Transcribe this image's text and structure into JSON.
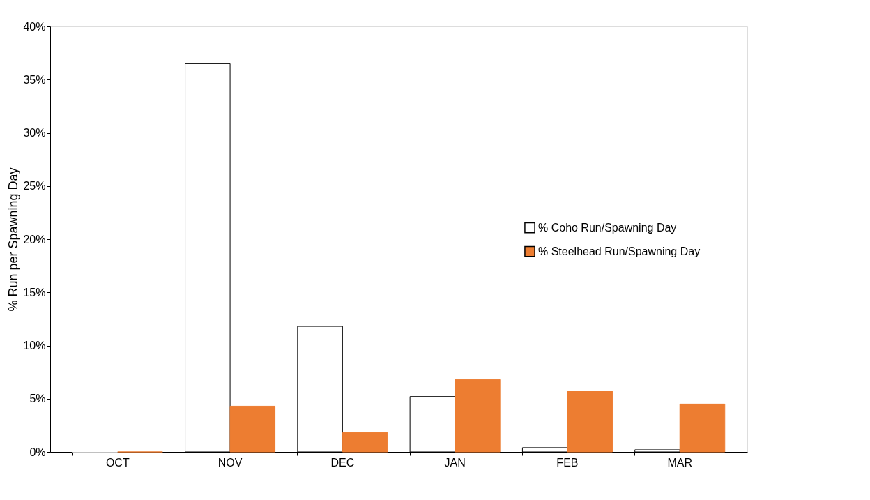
{
  "chart_data": {
    "type": "bar",
    "ylabel": "% Run per Spawning Day",
    "categories": [
      "OCT",
      "NOV",
      "DEC",
      "JAN",
      "FEB",
      "MAR"
    ],
    "series": [
      {
        "name": "% Coho Run/Spawning Day",
        "color": "#ffffff",
        "values": [
          0,
          36.5,
          11.8,
          5.2,
          0.4,
          0.2
        ]
      },
      {
        "name": "% Steelhead Run/Spawning Day",
        "color": "#ed7d31",
        "values": [
          0,
          4.3,
          1.8,
          6.8,
          5.7,
          4.5
        ]
      }
    ],
    "ylim": [
      0,
      40
    ],
    "yticks": [
      {
        "value": 0,
        "label": "0%"
      },
      {
        "value": 5,
        "label": "5%"
      },
      {
        "value": 10,
        "label": "10%"
      },
      {
        "value": 15,
        "label": "15%"
      },
      {
        "value": 20,
        "label": "20%"
      },
      {
        "value": 25,
        "label": "25%"
      },
      {
        "value": 30,
        "label": "30%"
      },
      {
        "value": 35,
        "label": "35%"
      },
      {
        "value": 40,
        "label": "40%"
      }
    ],
    "grid": false,
    "legend": "right"
  }
}
